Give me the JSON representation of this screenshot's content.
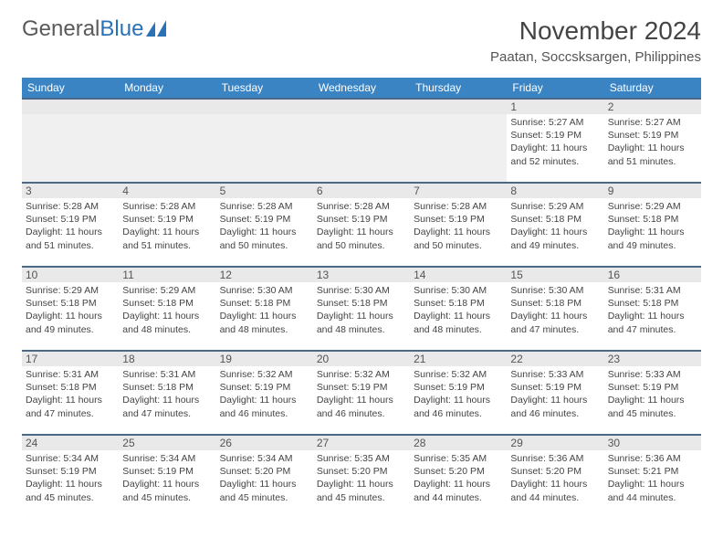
{
  "logo": {
    "text_gray": "General",
    "text_blue": "Blue"
  },
  "title": "November 2024",
  "location": "Paatan, Soccsksargen, Philippines",
  "colors": {
    "header_bg": "#3a84c4",
    "row_border": "#4a6a88",
    "daynum_bg": "#e9e9e9",
    "empty_bg": "#f0f0f0"
  },
  "day_headers": [
    "Sunday",
    "Monday",
    "Tuesday",
    "Wednesday",
    "Thursday",
    "Friday",
    "Saturday"
  ],
  "weeks": [
    [
      {
        "n": "",
        "lines": []
      },
      {
        "n": "",
        "lines": []
      },
      {
        "n": "",
        "lines": []
      },
      {
        "n": "",
        "lines": []
      },
      {
        "n": "",
        "lines": []
      },
      {
        "n": "1",
        "lines": [
          "Sunrise: 5:27 AM",
          "Sunset: 5:19 PM",
          "Daylight: 11 hours and 52 minutes."
        ]
      },
      {
        "n": "2",
        "lines": [
          "Sunrise: 5:27 AM",
          "Sunset: 5:19 PM",
          "Daylight: 11 hours and 51 minutes."
        ]
      }
    ],
    [
      {
        "n": "3",
        "lines": [
          "Sunrise: 5:28 AM",
          "Sunset: 5:19 PM",
          "Daylight: 11 hours and 51 minutes."
        ]
      },
      {
        "n": "4",
        "lines": [
          "Sunrise: 5:28 AM",
          "Sunset: 5:19 PM",
          "Daylight: 11 hours and 51 minutes."
        ]
      },
      {
        "n": "5",
        "lines": [
          "Sunrise: 5:28 AM",
          "Sunset: 5:19 PM",
          "Daylight: 11 hours and 50 minutes."
        ]
      },
      {
        "n": "6",
        "lines": [
          "Sunrise: 5:28 AM",
          "Sunset: 5:19 PM",
          "Daylight: 11 hours and 50 minutes."
        ]
      },
      {
        "n": "7",
        "lines": [
          "Sunrise: 5:28 AM",
          "Sunset: 5:19 PM",
          "Daylight: 11 hours and 50 minutes."
        ]
      },
      {
        "n": "8",
        "lines": [
          "Sunrise: 5:29 AM",
          "Sunset: 5:18 PM",
          "Daylight: 11 hours and 49 minutes."
        ]
      },
      {
        "n": "9",
        "lines": [
          "Sunrise: 5:29 AM",
          "Sunset: 5:18 PM",
          "Daylight: 11 hours and 49 minutes."
        ]
      }
    ],
    [
      {
        "n": "10",
        "lines": [
          "Sunrise: 5:29 AM",
          "Sunset: 5:18 PM",
          "Daylight: 11 hours and 49 minutes."
        ]
      },
      {
        "n": "11",
        "lines": [
          "Sunrise: 5:29 AM",
          "Sunset: 5:18 PM",
          "Daylight: 11 hours and 48 minutes."
        ]
      },
      {
        "n": "12",
        "lines": [
          "Sunrise: 5:30 AM",
          "Sunset: 5:18 PM",
          "Daylight: 11 hours and 48 minutes."
        ]
      },
      {
        "n": "13",
        "lines": [
          "Sunrise: 5:30 AM",
          "Sunset: 5:18 PM",
          "Daylight: 11 hours and 48 minutes."
        ]
      },
      {
        "n": "14",
        "lines": [
          "Sunrise: 5:30 AM",
          "Sunset: 5:18 PM",
          "Daylight: 11 hours and 48 minutes."
        ]
      },
      {
        "n": "15",
        "lines": [
          "Sunrise: 5:30 AM",
          "Sunset: 5:18 PM",
          "Daylight: 11 hours and 47 minutes."
        ]
      },
      {
        "n": "16",
        "lines": [
          "Sunrise: 5:31 AM",
          "Sunset: 5:18 PM",
          "Daylight: 11 hours and 47 minutes."
        ]
      }
    ],
    [
      {
        "n": "17",
        "lines": [
          "Sunrise: 5:31 AM",
          "Sunset: 5:18 PM",
          "Daylight: 11 hours and 47 minutes."
        ]
      },
      {
        "n": "18",
        "lines": [
          "Sunrise: 5:31 AM",
          "Sunset: 5:18 PM",
          "Daylight: 11 hours and 47 minutes."
        ]
      },
      {
        "n": "19",
        "lines": [
          "Sunrise: 5:32 AM",
          "Sunset: 5:19 PM",
          "Daylight: 11 hours and 46 minutes."
        ]
      },
      {
        "n": "20",
        "lines": [
          "Sunrise: 5:32 AM",
          "Sunset: 5:19 PM",
          "Daylight: 11 hours and 46 minutes."
        ]
      },
      {
        "n": "21",
        "lines": [
          "Sunrise: 5:32 AM",
          "Sunset: 5:19 PM",
          "Daylight: 11 hours and 46 minutes."
        ]
      },
      {
        "n": "22",
        "lines": [
          "Sunrise: 5:33 AM",
          "Sunset: 5:19 PM",
          "Daylight: 11 hours and 46 minutes."
        ]
      },
      {
        "n": "23",
        "lines": [
          "Sunrise: 5:33 AM",
          "Sunset: 5:19 PM",
          "Daylight: 11 hours and 45 minutes."
        ]
      }
    ],
    [
      {
        "n": "24",
        "lines": [
          "Sunrise: 5:34 AM",
          "Sunset: 5:19 PM",
          "Daylight: 11 hours and 45 minutes."
        ]
      },
      {
        "n": "25",
        "lines": [
          "Sunrise: 5:34 AM",
          "Sunset: 5:19 PM",
          "Daylight: 11 hours and 45 minutes."
        ]
      },
      {
        "n": "26",
        "lines": [
          "Sunrise: 5:34 AM",
          "Sunset: 5:20 PM",
          "Daylight: 11 hours and 45 minutes."
        ]
      },
      {
        "n": "27",
        "lines": [
          "Sunrise: 5:35 AM",
          "Sunset: 5:20 PM",
          "Daylight: 11 hours and 45 minutes."
        ]
      },
      {
        "n": "28",
        "lines": [
          "Sunrise: 5:35 AM",
          "Sunset: 5:20 PM",
          "Daylight: 11 hours and 44 minutes."
        ]
      },
      {
        "n": "29",
        "lines": [
          "Sunrise: 5:36 AM",
          "Sunset: 5:20 PM",
          "Daylight: 11 hours and 44 minutes."
        ]
      },
      {
        "n": "30",
        "lines": [
          "Sunrise: 5:36 AM",
          "Sunset: 5:21 PM",
          "Daylight: 11 hours and 44 minutes."
        ]
      }
    ]
  ]
}
